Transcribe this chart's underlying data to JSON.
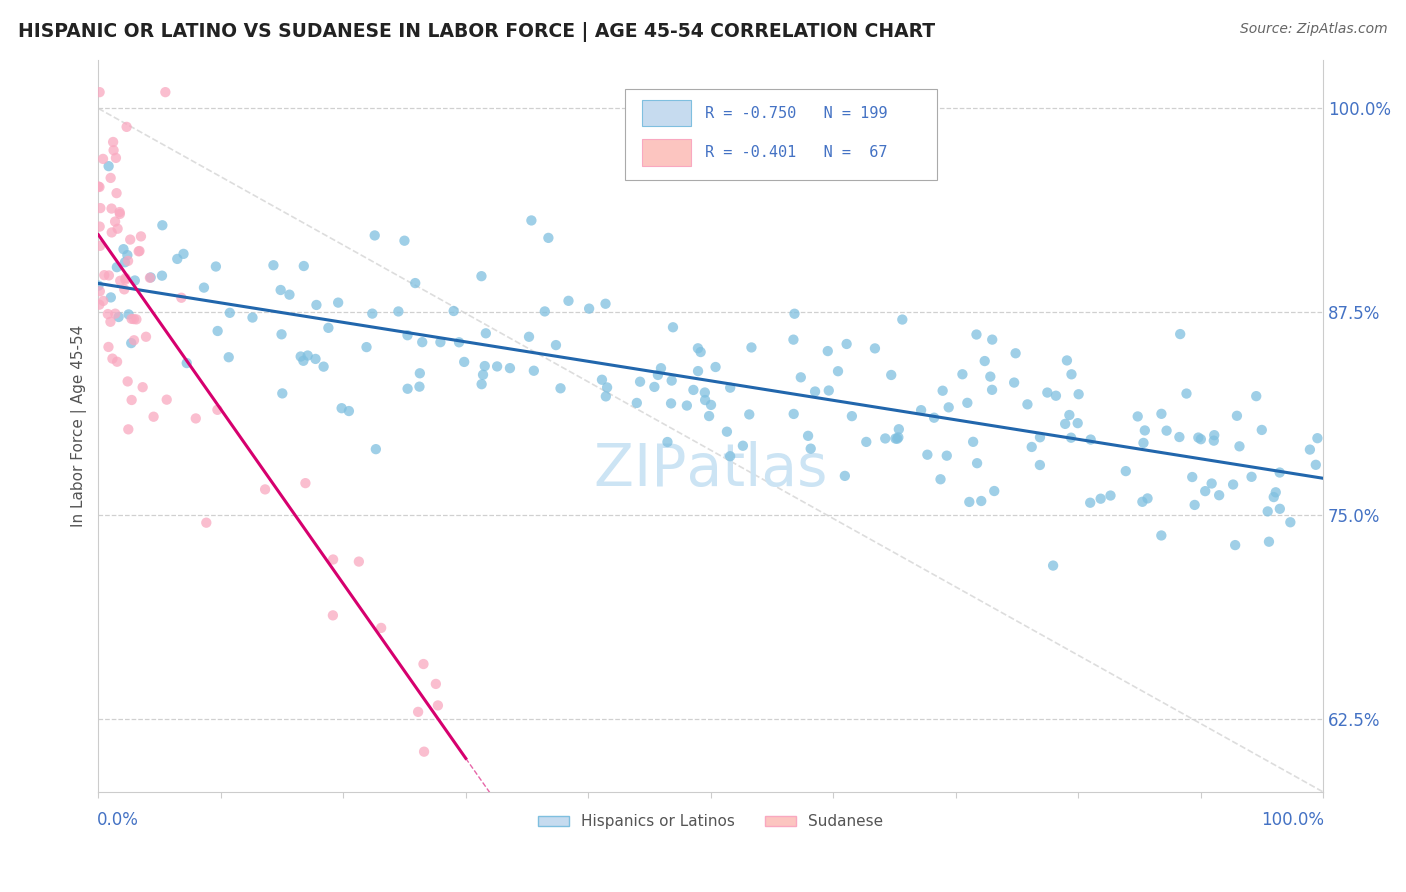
{
  "title": "HISPANIC OR LATINO VS SUDANESE IN LABOR FORCE | AGE 45-54 CORRELATION CHART",
  "source_text": "Source: ZipAtlas.com",
  "ylabel": "In Labor Force | Age 45-54",
  "xlim": [
    0.0,
    1.0
  ],
  "ylim": [
    0.58,
    1.03
  ],
  "ytick_vals": [
    0.625,
    0.75,
    0.875,
    1.0
  ],
  "ytick_labels": [
    "62.5%",
    "75.0%",
    "87.5%",
    "100.0%"
  ],
  "blue_scatter_color": "#7fbfdf",
  "blue_edge_color": "#5ba3cc",
  "pink_scatter_color": "#f9a8c0",
  "pink_edge_color": "#f768a1",
  "trend_blue_color": "#2166ac",
  "trend_pink_color": "#d6006e",
  "ref_line_color": "#dddddd",
  "grid_color": "#d0d0d0",
  "background_color": "#ffffff",
  "title_color": "#222222",
  "axis_label_color": "#4472c4",
  "legend_text_color": "#4472c4",
  "source_color": "#666666",
  "watermark_color": "#cce4f4",
  "ylabel_color": "#555555",
  "legend_blue_fill": "#c6dbef",
  "legend_blue_edge": "#7fbfdf",
  "legend_pink_fill": "#fcc5c0",
  "legend_pink_edge": "#f9a8c0",
  "bottom_legend_label_color": "#555555"
}
